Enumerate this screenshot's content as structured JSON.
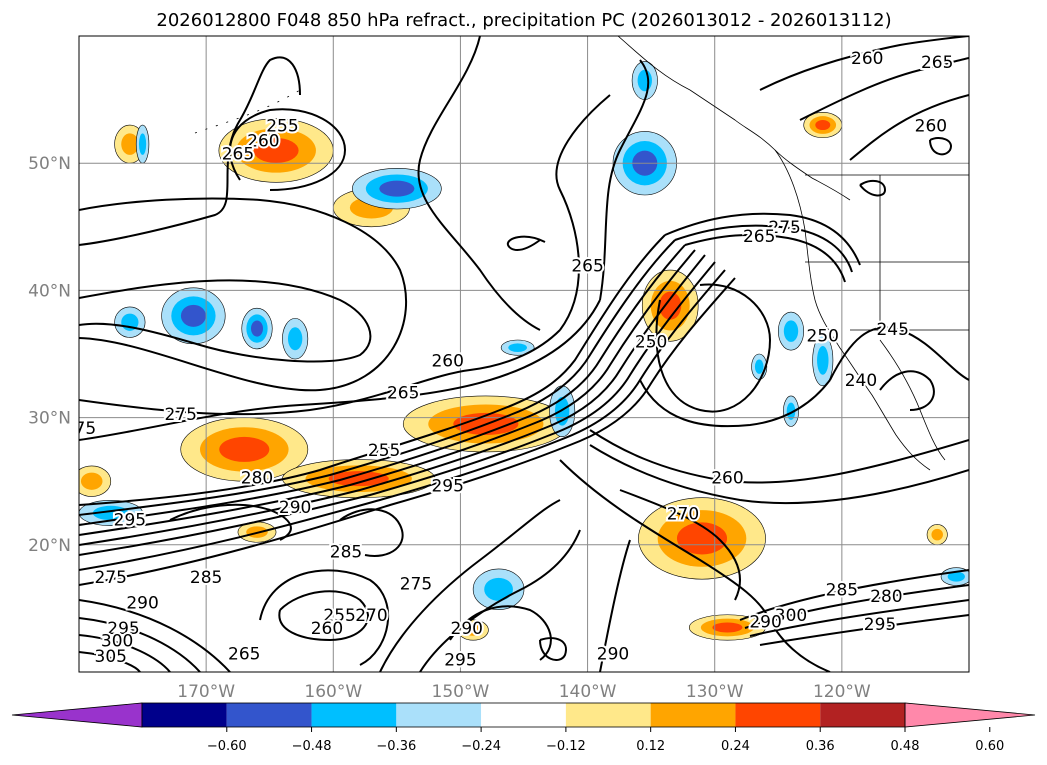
{
  "title": "2026012800 F048 850 hPa refract., precipitation PC (2026013012 - 2026013112)",
  "map": {
    "lon_range": [
      -180,
      -110
    ],
    "lat_range": [
      10,
      60
    ],
    "lon_ticks": [
      {
        "value": -170,
        "label": "170°W"
      },
      {
        "value": -160,
        "label": "160°W"
      },
      {
        "value": -150,
        "label": "150°W"
      },
      {
        "value": -140,
        "label": "140°W"
      },
      {
        "value": -130,
        "label": "130°W"
      },
      {
        "value": -120,
        "label": "120°W"
      }
    ],
    "lat_ticks": [
      {
        "value": 20,
        "label": "20°N"
      },
      {
        "value": 30,
        "label": "30°N"
      },
      {
        "value": 40,
        "label": "40°N"
      },
      {
        "value": 50,
        "label": "50°N"
      }
    ],
    "grid": true,
    "coastlines": true
  },
  "colorbar": {
    "bounds": [
      -0.72,
      -0.6,
      -0.48,
      -0.36,
      -0.24,
      -0.12,
      0.12,
      0.24,
      0.36,
      0.48,
      0.6,
      0.72
    ],
    "colors": [
      "#9933cc",
      "#00008b",
      "#3355cc",
      "#00bfff",
      "#aae0fa",
      "#ffffff",
      "#ffe88a",
      "#ffa500",
      "#ff4500",
      "#b22222",
      "#ff88aa"
    ],
    "tick_labels": [
      "−0.60",
      "−0.48",
      "−0.36",
      "−0.24",
      "−0.12",
      "0.12",
      "0.24",
      "0.36",
      "0.48",
      "0.60"
    ],
    "extend": "both"
  },
  "contour_labels": [
    {
      "text": "260",
      "lon": -165.5,
      "lat": 51.3
    },
    {
      "text": "265",
      "lon": -167.5,
      "lat": 50.3
    },
    {
      "text": "255",
      "lon": -164.0,
      "lat": 52.5
    },
    {
      "text": "260",
      "lon": -118.0,
      "lat": 57.8
    },
    {
      "text": "265",
      "lon": -112.5,
      "lat": 57.5
    },
    {
      "text": "260",
      "lon": -113.0,
      "lat": 52.5
    },
    {
      "text": "265",
      "lon": -140.0,
      "lat": 41.5
    },
    {
      "text": "275",
      "lon": -124.5,
      "lat": 44.5
    },
    {
      "text": "265",
      "lon": -126.5,
      "lat": 43.8
    },
    {
      "text": "260",
      "lon": -151.0,
      "lat": 34.0
    },
    {
      "text": "265",
      "lon": -154.5,
      "lat": 31.5
    },
    {
      "text": "275",
      "lon": -172.0,
      "lat": 29.8
    },
    {
      "text": "255",
      "lon": -156.0,
      "lat": 27.0
    },
    {
      "text": "280",
      "lon": -166.0,
      "lat": 24.8
    },
    {
      "text": "295",
      "lon": -151.0,
      "lat": 24.2
    },
    {
      "text": "250",
      "lon": -135.0,
      "lat": 35.5
    },
    {
      "text": "250",
      "lon": -121.5,
      "lat": 36.0
    },
    {
      "text": "245",
      "lon": -116.0,
      "lat": 36.5
    },
    {
      "text": "240",
      "lon": -118.5,
      "lat": 32.5
    },
    {
      "text": "260",
      "lon": -129.0,
      "lat": 24.8
    },
    {
      "text": "270",
      "lon": -132.5,
      "lat": 22.0
    },
    {
      "text": "290",
      "lon": -163.0,
      "lat": 22.5
    },
    {
      "text": "295",
      "lon": -176.0,
      "lat": 21.5
    },
    {
      "text": "285",
      "lon": -159.0,
      "lat": 19.0
    },
    {
      "text": "275",
      "lon": -177.5,
      "lat": 17.0
    },
    {
      "text": "285",
      "lon": -170.0,
      "lat": 17.0
    },
    {
      "text": "290",
      "lon": -175.0,
      "lat": 15.0
    },
    {
      "text": "295",
      "lon": -176.5,
      "lat": 13.0
    },
    {
      "text": "300",
      "lon": -177.0,
      "lat": 12.0
    },
    {
      "text": "305",
      "lon": -177.5,
      "lat": 10.8
    },
    {
      "text": "265",
      "lon": -167.0,
      "lat": 11.0
    },
    {
      "text": "255",
      "lon": -159.5,
      "lat": 14.0
    },
    {
      "text": "260",
      "lon": -160.5,
      "lat": 13.0
    },
    {
      "text": "270",
      "lon": -157.0,
      "lat": 14.0
    },
    {
      "text": "275",
      "lon": -153.5,
      "lat": 16.5
    },
    {
      "text": "290",
      "lon": -149.5,
      "lat": 13.0
    },
    {
      "text": "295",
      "lon": -150.0,
      "lat": 10.5
    },
    {
      "text": "290",
      "lon": -138.0,
      "lat": 11.0
    },
    {
      "text": "285",
      "lon": -120.0,
      "lat": 16.0
    },
    {
      "text": "280",
      "lon": -116.5,
      "lat": 15.5
    },
    {
      "text": "295",
      "lon": -117.0,
      "lat": 13.3
    },
    {
      "text": "300",
      "lon": -124.0,
      "lat": 14.0
    },
    {
      "text": "290",
      "lon": -126.0,
      "lat": 13.5
    },
    {
      "text": "75",
      "lon": -179.5,
      "lat": 28.7
    }
  ],
  "precip_blobs": [
    {
      "lon": -164.5,
      "lat": 51.0,
      "rx": 4.5,
      "ry": 2.5,
      "value": 0.42
    },
    {
      "lon": -157.0,
      "lat": 46.5,
      "rx": 3.0,
      "ry": 1.5,
      "value": 0.3
    },
    {
      "lon": -121.5,
      "lat": 53.0,
      "rx": 1.5,
      "ry": 1.0,
      "value": 0.4
    },
    {
      "lon": -179.0,
      "lat": 25.0,
      "rx": 1.5,
      "ry": 1.2,
      "value": 0.25
    },
    {
      "lon": -167.0,
      "lat": 27.5,
      "rx": 5.0,
      "ry": 2.5,
      "value": 0.4
    },
    {
      "lon": -158.0,
      "lat": 25.2,
      "rx": 6.0,
      "ry": 1.5,
      "value": 0.4
    },
    {
      "lon": -148.0,
      "lat": 29.5,
      "rx": 6.5,
      "ry": 2.2,
      "value": 0.38
    },
    {
      "lon": -133.5,
      "lat": 38.8,
      "rx": 2.2,
      "ry": 2.8,
      "value": 0.42
    },
    {
      "lon": -131.0,
      "lat": 20.5,
      "rx": 5.0,
      "ry": 3.2,
      "value": 0.4
    },
    {
      "lon": -129.0,
      "lat": 13.5,
      "rx": 3.0,
      "ry": 1.0,
      "value": 0.36
    },
    {
      "lon": -166.0,
      "lat": 21.0,
      "rx": 1.5,
      "ry": 0.8,
      "value": 0.3
    },
    {
      "lon": -149.0,
      "lat": 13.3,
      "rx": 1.2,
      "ry": 0.8,
      "value": 0.28
    },
    {
      "lon": -176.0,
      "lat": 51.5,
      "rx": 1.2,
      "ry": 1.5,
      "value": 0.28
    },
    {
      "lon": -112.5,
      "lat": 20.8,
      "rx": 0.8,
      "ry": 0.8,
      "value": 0.28
    },
    {
      "lon": -142.0,
      "lat": 30.5,
      "rx": 1.0,
      "ry": 2.0,
      "value": -0.3
    },
    {
      "lon": -155.0,
      "lat": 48.0,
      "rx": 3.5,
      "ry": 1.6,
      "value": -0.4
    },
    {
      "lon": -176.0,
      "lat": 37.5,
      "rx": 1.2,
      "ry": 1.2,
      "value": -0.28
    },
    {
      "lon": -171.0,
      "lat": 38.0,
      "rx": 2.5,
      "ry": 2.2,
      "value": -0.42
    },
    {
      "lon": -166.0,
      "lat": 37.0,
      "rx": 1.2,
      "ry": 1.6,
      "value": -0.36
    },
    {
      "lon": -163.0,
      "lat": 36.2,
      "rx": 1.0,
      "ry": 1.6,
      "value": -0.3
    },
    {
      "lon": -135.5,
      "lat": 50.0,
      "rx": 2.5,
      "ry": 2.5,
      "value": -0.38
    },
    {
      "lon": -135.5,
      "lat": 56.5,
      "rx": 1.0,
      "ry": 1.5,
      "value": -0.28
    },
    {
      "lon": -145.5,
      "lat": 35.5,
      "rx": 1.3,
      "ry": 0.6,
      "value": -0.28
    },
    {
      "lon": -147.0,
      "lat": 16.5,
      "rx": 2.0,
      "ry": 1.6,
      "value": -0.28
    },
    {
      "lon": -177.5,
      "lat": 22.5,
      "rx": 2.5,
      "ry": 1.0,
      "value": -0.28
    },
    {
      "lon": -121.5,
      "lat": 34.5,
      "rx": 0.8,
      "ry": 2.0,
      "value": -0.3
    },
    {
      "lon": -124.0,
      "lat": 36.8,
      "rx": 1.0,
      "ry": 1.5,
      "value": -0.3
    },
    {
      "lon": -126.5,
      "lat": 34.0,
      "rx": 0.6,
      "ry": 1.0,
      "value": -0.28
    },
    {
      "lon": -124.0,
      "lat": 30.5,
      "rx": 0.6,
      "ry": 1.2,
      "value": -0.28
    },
    {
      "lon": -111.0,
      "lat": 17.5,
      "rx": 1.2,
      "ry": 0.7,
      "value": -0.28
    },
    {
      "lon": -175.0,
      "lat": 51.5,
      "rx": 0.5,
      "ry": 1.5,
      "value": -0.26
    }
  ]
}
